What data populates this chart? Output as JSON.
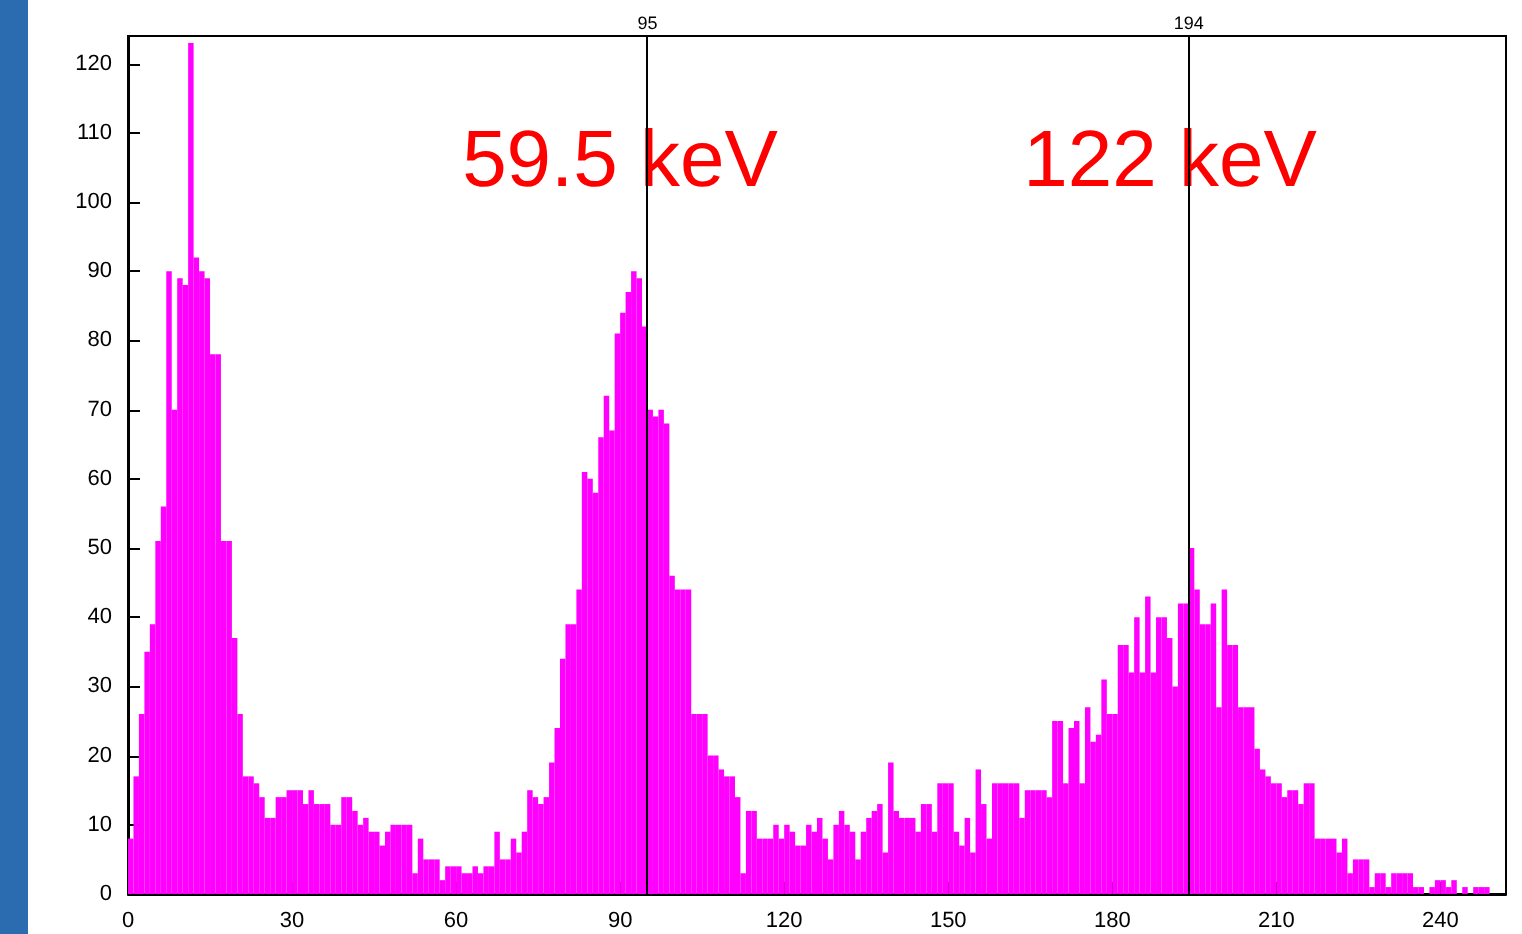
{
  "chart_data": {
    "type": "histogram",
    "bins": [
      0,
      1,
      2,
      3,
      4,
      5,
      6,
      7,
      8,
      9,
      10,
      11,
      12,
      13,
      14,
      15,
      16,
      17,
      18,
      19,
      20,
      21,
      22,
      23,
      24,
      25,
      26,
      27,
      28,
      29,
      30,
      31,
      32,
      33,
      34,
      35,
      36,
      37,
      38,
      39,
      40,
      41,
      42,
      43,
      44,
      45,
      46,
      47,
      48,
      49,
      50,
      51,
      52,
      53,
      54,
      55,
      56,
      57,
      58,
      59,
      60,
      61,
      62,
      63,
      64,
      65,
      66,
      67,
      68,
      69,
      70,
      71,
      72,
      73,
      74,
      75,
      76,
      77,
      78,
      79,
      80,
      81,
      82,
      83,
      84,
      85,
      86,
      87,
      88,
      89,
      90,
      91,
      92,
      93,
      94,
      95,
      96,
      97,
      98,
      99,
      100,
      101,
      102,
      103,
      104,
      105,
      106,
      107,
      108,
      109,
      110,
      111,
      112,
      113,
      114,
      115,
      116,
      117,
      118,
      119,
      120,
      121,
      122,
      123,
      124,
      125,
      126,
      127,
      128,
      129,
      130,
      131,
      132,
      133,
      134,
      135,
      136,
      137,
      138,
      139,
      140,
      141,
      142,
      143,
      144,
      145,
      146,
      147,
      148,
      149,
      150,
      151,
      152,
      153,
      154,
      155,
      156,
      157,
      158,
      159,
      160,
      161,
      162,
      163,
      164,
      165,
      166,
      167,
      168,
      169,
      170,
      171,
      172,
      173,
      174,
      175,
      176,
      177,
      178,
      179,
      180,
      181,
      182,
      183,
      184,
      185,
      186,
      187,
      188,
      189,
      190,
      191,
      192,
      193,
      194,
      195,
      196,
      197,
      198,
      199,
      200,
      201,
      202,
      203,
      204,
      205,
      206,
      207,
      208,
      209,
      210,
      211,
      212,
      213,
      214,
      215,
      216,
      217,
      218,
      219,
      220,
      221,
      222,
      223,
      224,
      225,
      226,
      227,
      228,
      229,
      230,
      231,
      232,
      233,
      234,
      235,
      236,
      237,
      238,
      239,
      240,
      241,
      242,
      243,
      244,
      245,
      246,
      247,
      248,
      249,
      250,
      251,
      252
    ],
    "values": [
      8,
      17,
      26,
      35,
      39,
      51,
      56,
      90,
      70,
      89,
      88,
      123,
      92,
      90,
      89,
      78,
      78,
      51,
      51,
      37,
      26,
      17,
      17,
      16,
      14,
      11,
      11,
      14,
      14,
      15,
      15,
      15,
      13,
      15,
      13,
      13,
      13,
      10,
      10,
      14,
      14,
      12,
      10,
      11,
      9,
      9,
      7,
      9,
      10,
      10,
      10,
      10,
      3,
      8,
      5,
      5,
      5,
      2,
      4,
      4,
      4,
      3,
      3,
      4,
      3,
      4,
      4,
      9,
      5,
      5,
      8,
      6,
      9,
      15,
      14,
      13,
      14,
      19,
      24,
      34,
      39,
      39,
      44,
      61,
      60,
      58,
      66,
      72,
      67,
      81,
      84,
      87,
      90,
      89,
      82,
      70,
      69,
      70,
      68,
      46,
      44,
      44,
      44,
      26,
      26,
      26,
      20,
      20,
      18,
      17,
      17,
      14,
      3,
      12,
      12,
      8,
      8,
      8,
      10,
      8,
      10,
      9,
      7,
      7,
      10,
      9,
      11,
      8,
      5,
      10,
      12,
      10,
      9,
      5,
      9,
      11,
      12,
      13,
      6,
      19,
      12,
      11,
      11,
      11,
      9,
      13,
      13,
      9,
      16,
      16,
      16,
      9,
      7,
      11,
      6,
      18,
      13,
      8,
      16,
      16,
      16,
      16,
      16,
      11,
      15,
      15,
      15,
      15,
      14,
      25,
      25,
      16,
      24,
      25,
      16,
      27,
      22,
      23,
      31,
      26,
      26,
      36,
      36,
      32,
      40,
      32,
      43,
      32,
      40,
      40,
      37,
      30,
      42,
      42,
      50,
      44,
      39,
      39,
      42,
      27,
      44,
      36,
      36,
      27,
      27,
      27,
      21,
      18,
      17,
      16,
      16,
      14,
      15,
      15,
      13,
      16,
      16,
      8,
      8,
      8,
      8,
      6,
      8,
      3,
      5,
      5,
      5,
      1,
      3,
      3,
      1,
      3,
      3,
      3,
      3,
      1,
      1,
      0,
      1,
      2,
      2,
      1,
      2,
      0,
      1,
      0,
      1,
      1,
      1,
      0,
      0,
      0
    ],
    "color": "#ff00ff",
    "xlim": [
      0,
      252
    ],
    "xticks": [
      0,
      30,
      60,
      90,
      120,
      150,
      180,
      210,
      240
    ],
    "ylim": [
      0,
      124
    ],
    "yticks": [
      0,
      10,
      20,
      30,
      40,
      50,
      60,
      70,
      80,
      90,
      100,
      110,
      120
    ],
    "ref_lines": [
      {
        "axis": "x",
        "value": 95,
        "label": "95",
        "color": "#000000"
      },
      {
        "axis": "x",
        "value": 194,
        "label": "194",
        "color": "#000000"
      }
    ],
    "annotations": [
      "59.5 keV",
      "122 keV"
    ],
    "grid": false
  }
}
